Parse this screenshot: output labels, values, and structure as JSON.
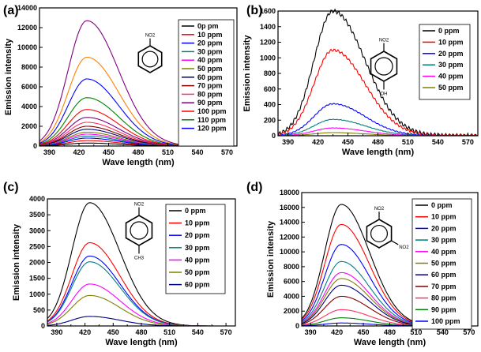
{
  "chart_data": [
    {
      "panel": "(a)",
      "type": "line",
      "xlabel": "Wave length (nm)",
      "ylabel": "Emission intensity",
      "xlim": [
        380,
        580
      ],
      "ylim": [
        0,
        14000
      ],
      "xticks": [
        390,
        420,
        450,
        480,
        510,
        540,
        570
      ],
      "yticks": [
        0,
        2000,
        4000,
        6000,
        8000,
        10000,
        12000,
        14000
      ],
      "peak_x": 428,
      "legend_position": "top-right",
      "substituents": [
        "NO2"
      ],
      "series": [
        {
          "name": "0p pm",
          "peak": 300,
          "color": "#000000"
        },
        {
          "name": "10 ppm",
          "peak": 550,
          "color": "#ff0000"
        },
        {
          "name": "20 ppm",
          "peak": 800,
          "color": "#0000ff"
        },
        {
          "name": "30 ppm",
          "peak": 1000,
          "color": "#008080"
        },
        {
          "name": "40 ppm",
          "peak": 1200,
          "color": "#ff00ff"
        },
        {
          "name": "50 ppm",
          "peak": 1400,
          "color": "#808000"
        },
        {
          "name": "60 ppm",
          "peak": 1700,
          "color": "#000080"
        },
        {
          "name": "70 ppm",
          "peak": 2000,
          "color": "#800000"
        },
        {
          "name": "80 ppm",
          "peak": 2400,
          "color": "#ff3366"
        },
        {
          "name": "90 ppm",
          "peak": 2900,
          "color": "#800080"
        },
        {
          "name": "100 ppm",
          "peak": 3700,
          "color": "#ff0000"
        },
        {
          "name": "110 ppm",
          "peak": 4900,
          "color": "#008000"
        },
        {
          "name": "120 ppm",
          "peak": 6800,
          "color": "#0000ff"
        },
        {
          "name": "",
          "peak": 9000,
          "color": "#ff8000"
        },
        {
          "name": "",
          "peak": 12700,
          "color": "#800080"
        }
      ]
    },
    {
      "panel": "(b)",
      "type": "line",
      "xlabel": "Wave length (nm)",
      "ylabel": "Emission intensity",
      "xlim": [
        380,
        580
      ],
      "ylim": [
        0,
        1600
      ],
      "xticks": [
        390,
        420,
        450,
        480,
        510,
        540,
        570
      ],
      "yticks": [
        0,
        200,
        400,
        600,
        800,
        1000,
        1200,
        1400,
        1600
      ],
      "peak_x": 435,
      "legend_position": "top-right",
      "substituents": [
        "NO2",
        "OH"
      ],
      "series": [
        {
          "name": "0 ppm",
          "peak": 1600,
          "color": "#000000"
        },
        {
          "name": "10 ppm",
          "peak": 1100,
          "color": "#ff0000"
        },
        {
          "name": "20 ppm",
          "peak": 410,
          "color": "#0000ff"
        },
        {
          "name": "30 ppm",
          "peak": 210,
          "color": "#008080"
        },
        {
          "name": "40 ppm",
          "peak": 100,
          "color": "#ff00ff"
        },
        {
          "name": "50 ppm",
          "peak": 40,
          "color": "#808000"
        }
      ]
    },
    {
      "panel": "(c)",
      "type": "line",
      "xlabel": "Wave length (nm)",
      "ylabel": "Emission intensity",
      "xlim": [
        380,
        580
      ],
      "ylim": [
        0,
        4000
      ],
      "xticks": [
        390,
        420,
        450,
        480,
        510,
        540,
        570
      ],
      "yticks": [
        0,
        500,
        1000,
        1500,
        2000,
        2500,
        3000,
        3500,
        4000
      ],
      "peak_x": 425,
      "legend_position": "top-right",
      "substituents": [
        "NO2",
        "CH3"
      ],
      "series": [
        {
          "name": "0 ppm",
          "peak": 3880,
          "color": "#000000"
        },
        {
          "name": "10 ppm",
          "peak": 2620,
          "color": "#ff0000"
        },
        {
          "name": "20 ppm",
          "peak": 2200,
          "color": "#0000ff"
        },
        {
          "name": "30 ppm",
          "peak": 2020,
          "color": "#008080"
        },
        {
          "name": "40 ppm",
          "peak": 1320,
          "color": "#ff00ff"
        },
        {
          "name": "50 ppm",
          "peak": 960,
          "color": "#808000"
        },
        {
          "name": "60 ppm",
          "peak": 300,
          "color": "#000080"
        }
      ]
    },
    {
      "panel": "(d)",
      "type": "line",
      "xlabel": "Wave length (nm)",
      "ylabel": "Emission intensity",
      "xlim": [
        380,
        580
      ],
      "ylim": [
        0,
        18000
      ],
      "xticks": [
        390,
        420,
        450,
        480,
        510,
        540,
        570
      ],
      "yticks": [
        0,
        2000,
        4000,
        6000,
        8000,
        10000,
        12000,
        14000,
        16000,
        18000
      ],
      "peak_x": 425,
      "legend_position": "top-right",
      "substituents": [
        "NO2",
        "NO2"
      ],
      "series": [
        {
          "name": "0 ppm",
          "peak": 16400,
          "color": "#000000"
        },
        {
          "name": "10 ppm",
          "peak": 13700,
          "color": "#ff0000"
        },
        {
          "name": "20 ppm",
          "peak": 11000,
          "color": "#0000ff"
        },
        {
          "name": "30 ppm",
          "peak": 8700,
          "color": "#008080"
        },
        {
          "name": "40 ppm",
          "peak": 7200,
          "color": "#ff00ff"
        },
        {
          "name": "50 ppm",
          "peak": 6400,
          "color": "#808000"
        },
        {
          "name": "60 ppm",
          "peak": 5500,
          "color": "#000080"
        },
        {
          "name": "70 ppm",
          "peak": 4000,
          "color": "#800000"
        },
        {
          "name": "80 ppm",
          "peak": 2200,
          "color": "#ff3366"
        },
        {
          "name": "90 ppm",
          "peak": 1100,
          "color": "#008000"
        },
        {
          "name": "100 ppm",
          "peak": 400,
          "color": "#0000ff"
        }
      ]
    }
  ]
}
